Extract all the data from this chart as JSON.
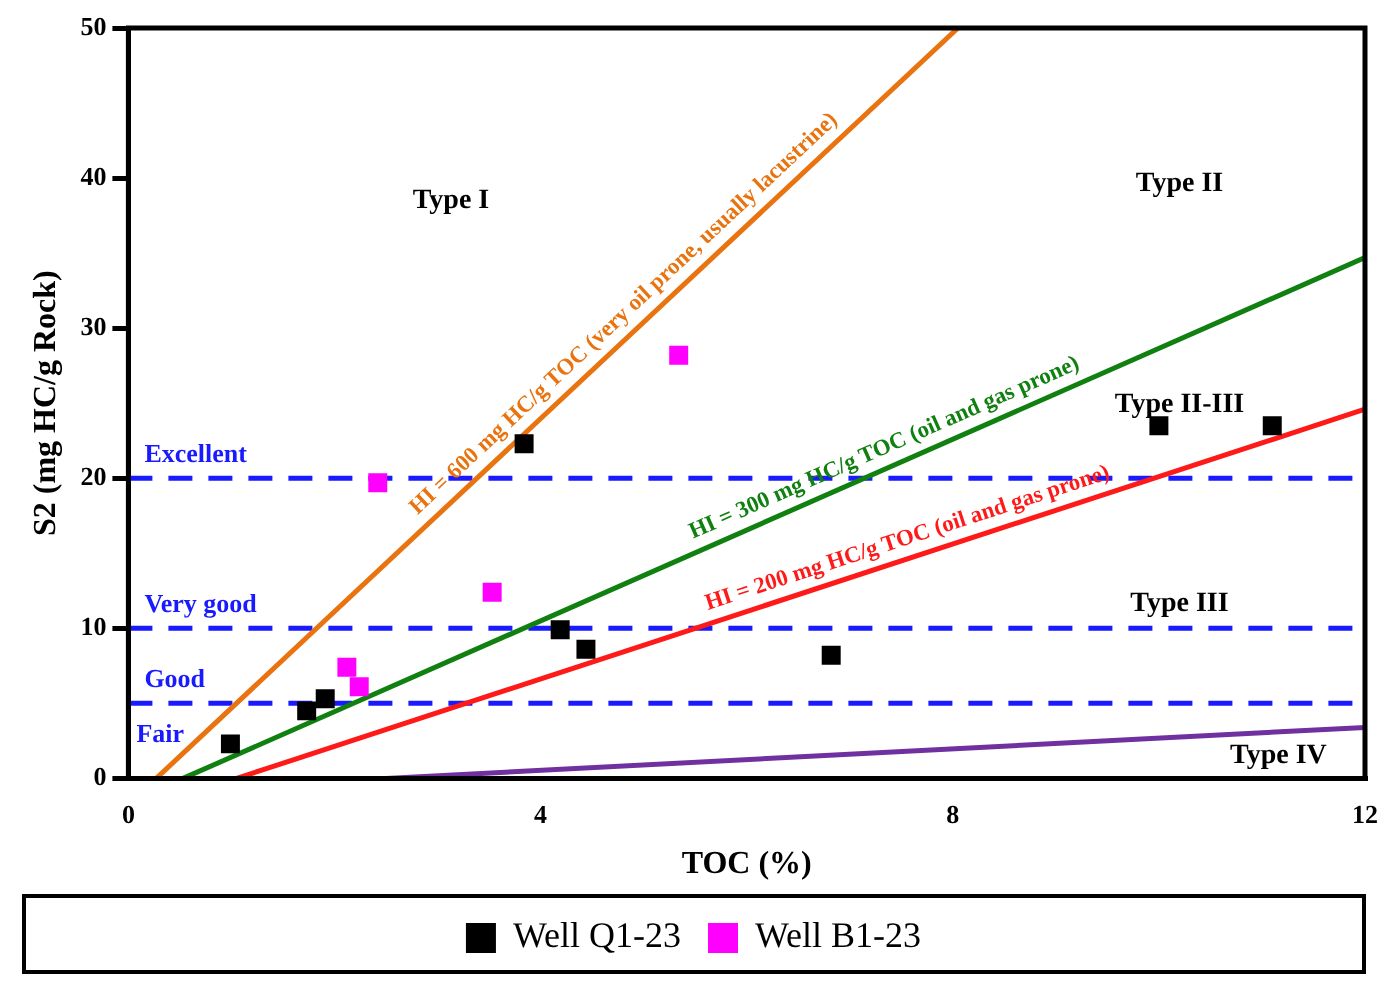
{
  "chart_data": {
    "type": "scatter",
    "xlabel": "TOC (%)",
    "ylabel": "S2 (mg HC/g Rock)",
    "xlim": [
      0,
      12
    ],
    "xticks": [
      0,
      4,
      8,
      12
    ],
    "ylim": [
      0,
      50
    ],
    "yticks": [
      0,
      10,
      20,
      30,
      40,
      50
    ],
    "grid": false,
    "legend": "bottom",
    "marker": "square",
    "series": [
      {
        "name": "Well Q1-23",
        "color": "#000000",
        "x": [
          0.99,
          1.73,
          1.91,
          3.84,
          4.19,
          4.44,
          6.82,
          10.0,
          11.1
        ],
        "values": [
          2.3,
          4.5,
          5.3,
          22.3,
          9.9,
          8.6,
          8.2,
          23.5,
          23.5
        ]
      },
      {
        "name": "Well B1-23",
        "color": "#ff00ff",
        "x": [
          2.42,
          3.53,
          2.12,
          2.24,
          5.34
        ],
        "values": [
          19.7,
          12.4,
          7.4,
          6.1,
          28.2
        ]
      },
      {
        "type": "line",
        "name": "HI = 600 mg HC/g TOC (very oil prone, usually lacustrine)",
        "color": "#e8730f",
        "x": [
          0.27,
          8.05
        ],
        "values": [
          0,
          50
        ],
        "marker": "none"
      },
      {
        "type": "line",
        "name": "HI = 300 mg HC/g TOC (oil and gas prone)",
        "color": "#108010",
        "x": [
          0.53,
          12
        ],
        "values": [
          0,
          34.7
        ],
        "marker": "none"
      },
      {
        "type": "line",
        "name": "HI = 200 mg HC/g TOC (oil and gas prone)",
        "color": "#ff1a1a",
        "x": [
          1.05,
          12
        ],
        "values": [
          0,
          24.6
        ],
        "marker": "none"
      },
      {
        "type": "line",
        "color": "#7030a0",
        "x": [
          2.5,
          12
        ],
        "values": [
          0,
          3.4
        ],
        "marker": "none"
      }
    ],
    "ref_lines": [
      {
        "axis": "y",
        "value": 20,
        "label": "Excellent",
        "color": "#1a1aff",
        "line_style": "dashed"
      },
      {
        "axis": "y",
        "value": 10,
        "label": "Very good",
        "color": "#1a1aff",
        "line_style": "dashed"
      },
      {
        "axis": "y",
        "value": 5,
        "label": "Good",
        "color": "#1a1aff",
        "line_style": "dashed"
      }
    ],
    "annotations": [
      "Type I",
      "Type II",
      "Type II-III",
      "Type III",
      "Type IV",
      "Fair"
    ]
  }
}
